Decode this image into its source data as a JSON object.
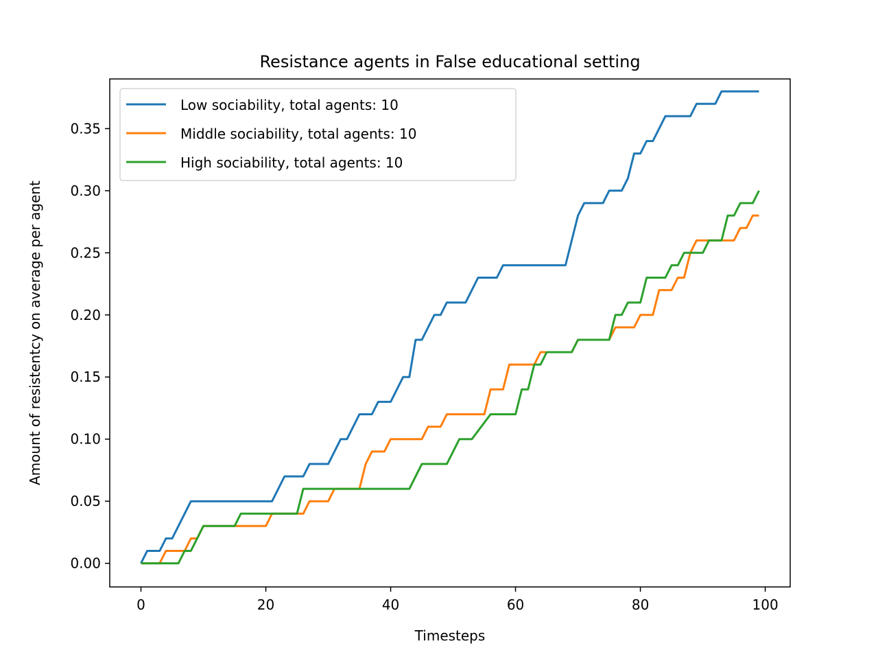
{
  "chart_data": {
    "type": "line",
    "title": "Resistance agents in False educational setting",
    "xlabel": "Timesteps",
    "ylabel": "Amount of resistentcy on average per agent",
    "xlim": [
      -5,
      104
    ],
    "ylim": [
      -0.019,
      0.39
    ],
    "xticks": [
      0,
      20,
      40,
      60,
      80,
      100
    ],
    "xtick_labels": [
      "0",
      "20",
      "40",
      "60",
      "80",
      "100"
    ],
    "yticks": [
      0.0,
      0.05,
      0.1,
      0.15,
      0.2,
      0.25,
      0.3,
      0.35
    ],
    "ytick_labels": [
      "0.00",
      "0.05",
      "0.10",
      "0.15",
      "0.20",
      "0.25",
      "0.30",
      "0.35"
    ],
    "grid": false,
    "legend_position": "top-left",
    "series": [
      {
        "name": "Low sociability, total agents: 10",
        "color": "#1f77b4",
        "points": [
          [
            0,
            0.0
          ],
          [
            1,
            0.01
          ],
          [
            3,
            0.01
          ],
          [
            4,
            0.02
          ],
          [
            5,
            0.02
          ],
          [
            8,
            0.05
          ],
          [
            21,
            0.05
          ],
          [
            23,
            0.07
          ],
          [
            26,
            0.07
          ],
          [
            27,
            0.08
          ],
          [
            30,
            0.08
          ],
          [
            32,
            0.1
          ],
          [
            33,
            0.1
          ],
          [
            35,
            0.12
          ],
          [
            37,
            0.12
          ],
          [
            38,
            0.13
          ],
          [
            40,
            0.13
          ],
          [
            42,
            0.15
          ],
          [
            43,
            0.15
          ],
          [
            44,
            0.18
          ],
          [
            45,
            0.18
          ],
          [
            47,
            0.2
          ],
          [
            48,
            0.2
          ],
          [
            49,
            0.21
          ],
          [
            52,
            0.21
          ],
          [
            54,
            0.23
          ],
          [
            57,
            0.23
          ],
          [
            58,
            0.24
          ],
          [
            68,
            0.24
          ],
          [
            70,
            0.28
          ],
          [
            71,
            0.29
          ],
          [
            74,
            0.29
          ],
          [
            75,
            0.3
          ],
          [
            77,
            0.3
          ],
          [
            78,
            0.31
          ],
          [
            79,
            0.33
          ],
          [
            80,
            0.33
          ],
          [
            81,
            0.34
          ],
          [
            82,
            0.34
          ],
          [
            84,
            0.36
          ],
          [
            88,
            0.36
          ],
          [
            89,
            0.37
          ],
          [
            92,
            0.37
          ],
          [
            93,
            0.38
          ],
          [
            99,
            0.38
          ]
        ]
      },
      {
        "name": "Middle sociability, total agents: 10",
        "color": "#ff7f0e",
        "points": [
          [
            0,
            0.0
          ],
          [
            3,
            0.0
          ],
          [
            4,
            0.01
          ],
          [
            7,
            0.01
          ],
          [
            8,
            0.02
          ],
          [
            9,
            0.02
          ],
          [
            10,
            0.03
          ],
          [
            20,
            0.03
          ],
          [
            21,
            0.04
          ],
          [
            26,
            0.04
          ],
          [
            27,
            0.05
          ],
          [
            30,
            0.05
          ],
          [
            31,
            0.06
          ],
          [
            35,
            0.06
          ],
          [
            36,
            0.08
          ],
          [
            37,
            0.09
          ],
          [
            39,
            0.09
          ],
          [
            40,
            0.1
          ],
          [
            45,
            0.1
          ],
          [
            46,
            0.11
          ],
          [
            48,
            0.11
          ],
          [
            49,
            0.12
          ],
          [
            55,
            0.12
          ],
          [
            56,
            0.14
          ],
          [
            58,
            0.14
          ],
          [
            59,
            0.16
          ],
          [
            63,
            0.16
          ],
          [
            64,
            0.17
          ],
          [
            69,
            0.17
          ],
          [
            70,
            0.18
          ],
          [
            75,
            0.18
          ],
          [
            76,
            0.19
          ],
          [
            79,
            0.19
          ],
          [
            80,
            0.2
          ],
          [
            82,
            0.2
          ],
          [
            83,
            0.22
          ],
          [
            85,
            0.22
          ],
          [
            86,
            0.23
          ],
          [
            87,
            0.23
          ],
          [
            88,
            0.25
          ],
          [
            89,
            0.26
          ],
          [
            95,
            0.26
          ],
          [
            96,
            0.27
          ],
          [
            97,
            0.27
          ],
          [
            98,
            0.28
          ],
          [
            99,
            0.28
          ]
        ]
      },
      {
        "name": "High sociability, total agents: 10",
        "color": "#2ca02c",
        "points": [
          [
            0,
            0.0
          ],
          [
            6,
            0.0
          ],
          [
            7,
            0.01
          ],
          [
            8,
            0.01
          ],
          [
            10,
            0.03
          ],
          [
            15,
            0.03
          ],
          [
            16,
            0.04
          ],
          [
            25,
            0.04
          ],
          [
            26,
            0.06
          ],
          [
            43,
            0.06
          ],
          [
            45,
            0.08
          ],
          [
            49,
            0.08
          ],
          [
            51,
            0.1
          ],
          [
            53,
            0.1
          ],
          [
            56,
            0.12
          ],
          [
            60,
            0.12
          ],
          [
            61,
            0.14
          ],
          [
            62,
            0.14
          ],
          [
            63,
            0.16
          ],
          [
            64,
            0.16
          ],
          [
            65,
            0.17
          ],
          [
            69,
            0.17
          ],
          [
            70,
            0.18
          ],
          [
            75,
            0.18
          ],
          [
            76,
            0.2
          ],
          [
            77,
            0.2
          ],
          [
            78,
            0.21
          ],
          [
            80,
            0.21
          ],
          [
            81,
            0.23
          ],
          [
            84,
            0.23
          ],
          [
            85,
            0.24
          ],
          [
            86,
            0.24
          ],
          [
            87,
            0.25
          ],
          [
            90,
            0.25
          ],
          [
            91,
            0.26
          ],
          [
            93,
            0.26
          ],
          [
            94,
            0.28
          ],
          [
            95,
            0.28
          ],
          [
            96,
            0.29
          ],
          [
            98,
            0.29
          ],
          [
            99,
            0.3
          ]
        ]
      }
    ]
  }
}
